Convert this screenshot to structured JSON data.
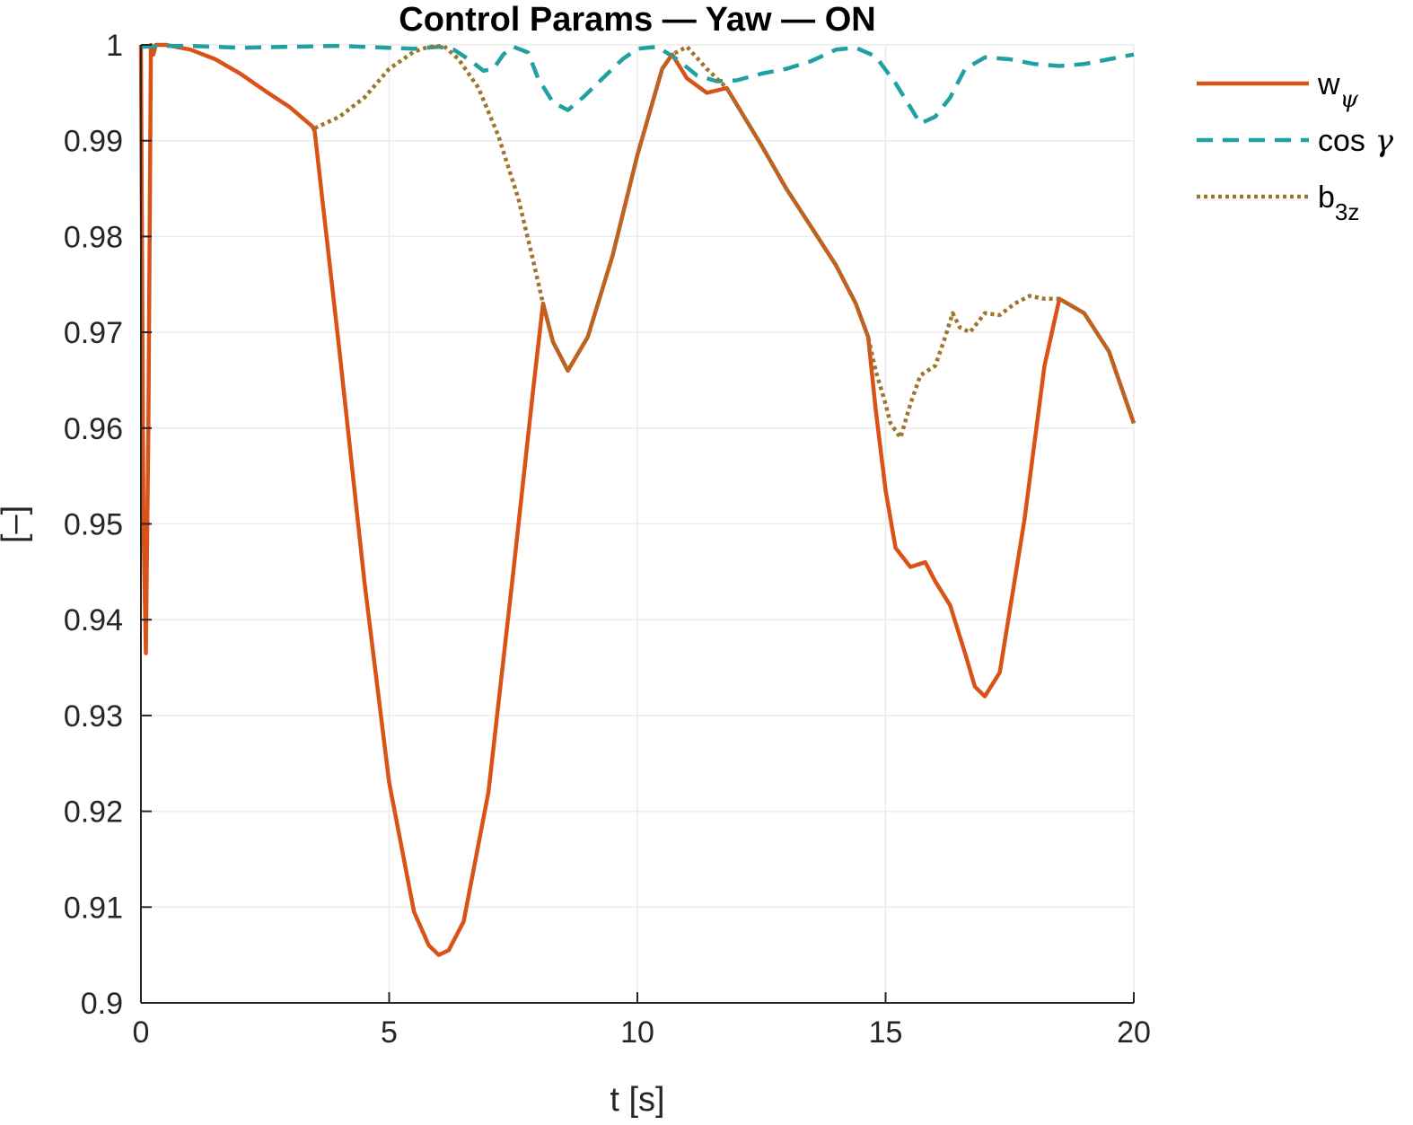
{
  "chart_data": {
    "type": "line",
    "title": "Control Params — Yaw — ON",
    "xlabel": "t [s]",
    "ylabel": "[–]",
    "xlim": [
      0,
      20
    ],
    "ylim": [
      0.9,
      1.0
    ],
    "xticks": [
      0,
      5,
      10,
      15,
      20
    ],
    "xtick_labels": [
      "0",
      "5",
      "10",
      "15",
      "20"
    ],
    "yticks": [
      0.9,
      0.91,
      0.92,
      0.93,
      0.94,
      0.95,
      0.96,
      0.97,
      0.98,
      0.99,
      1.0
    ],
    "ytick_labels": [
      "0.9",
      "0.91",
      "0.92",
      "0.93",
      "0.94",
      "0.95",
      "0.96",
      "0.97",
      "0.98",
      "0.99",
      "1"
    ],
    "grid": true,
    "legend_position": "outside-top-right",
    "series": [
      {
        "name": "w",
        "name_sub": "ψ",
        "color": "#d95319",
        "style": "solid",
        "x": [
          0.0,
          0.05,
          0.1,
          0.15,
          0.2,
          0.25,
          0.3,
          0.5,
          1.0,
          1.5,
          2.0,
          2.5,
          3.0,
          3.45,
          3.5,
          4.0,
          4.5,
          5.0,
          5.5,
          5.8,
          6.0,
          6.2,
          6.5,
          7.0,
          7.5,
          7.9,
          8.1,
          8.3,
          8.6,
          9.0,
          9.5,
          10.0,
          10.5,
          10.7,
          11.0,
          11.4,
          11.8,
          12.5,
          13.0,
          13.5,
          14.0,
          14.4,
          14.65,
          14.8,
          15.0,
          15.2,
          15.5,
          15.8,
          16.0,
          16.3,
          16.6,
          16.8,
          17.0,
          17.3,
          17.8,
          18.2,
          18.5,
          19.0,
          19.5,
          20.0
        ],
        "y": [
          1.0,
          0.95,
          0.9365,
          0.96,
          1.0,
          0.999,
          1.0,
          1.0,
          0.9995,
          0.9985,
          0.997,
          0.9952,
          0.9935,
          0.9915,
          0.991,
          0.968,
          0.944,
          0.923,
          0.9095,
          0.906,
          0.905,
          0.9055,
          0.9085,
          0.922,
          0.945,
          0.964,
          0.973,
          0.969,
          0.966,
          0.9695,
          0.978,
          0.9885,
          0.9975,
          0.999,
          0.9965,
          0.995,
          0.9955,
          0.9895,
          0.985,
          0.981,
          0.977,
          0.973,
          0.9695,
          0.962,
          0.9535,
          0.9475,
          0.9455,
          0.946,
          0.944,
          0.9415,
          0.9365,
          0.933,
          0.932,
          0.9345,
          0.9505,
          0.9665,
          0.9735,
          0.972,
          0.968,
          0.9605
        ]
      },
      {
        "name": "cos",
        "name_sym": "γ",
        "color": "#20a0a0",
        "style": "dashed",
        "x": [
          0.0,
          0.5,
          1.0,
          1.5,
          2.0,
          3.0,
          4.0,
          5.0,
          5.5,
          6.0,
          6.3,
          6.6,
          6.9,
          7.1,
          7.3,
          7.5,
          7.8,
          8.0,
          8.3,
          8.6,
          8.9,
          9.3,
          9.7,
          10.0,
          10.4,
          10.8,
          11.2,
          11.6,
          12.0,
          12.5,
          13.0,
          13.5,
          14.0,
          14.4,
          14.8,
          15.2,
          15.5,
          15.7,
          16.0,
          16.3,
          16.6,
          17.0,
          17.5,
          18.0,
          18.5,
          19.0,
          19.5,
          20.0
        ],
        "y": [
          0.9998,
          0.9999,
          0.9999,
          0.9998,
          0.9997,
          0.9998,
          0.9999,
          0.9997,
          0.9996,
          0.9998,
          0.9995,
          0.9985,
          0.9973,
          0.9975,
          0.999,
          0.9998,
          0.9992,
          0.9965,
          0.994,
          0.9932,
          0.9945,
          0.9965,
          0.9985,
          0.9996,
          0.9998,
          0.9985,
          0.9968,
          0.9962,
          0.9963,
          0.997,
          0.9975,
          0.9983,
          0.9995,
          0.9997,
          0.9988,
          0.996,
          0.9935,
          0.9918,
          0.9925,
          0.9945,
          0.9975,
          0.9987,
          0.9985,
          0.998,
          0.9978,
          0.998,
          0.9985,
          0.999
        ]
      },
      {
        "name": "b",
        "name_sub": "3z",
        "color": "#a0742a",
        "style": "dotted",
        "x": [
          3.5,
          4.0,
          4.5,
          5.0,
          5.5,
          5.8,
          6.1,
          6.4,
          6.8,
          7.2,
          7.6,
          7.9,
          8.1,
          8.3,
          8.6,
          9.0,
          9.5,
          10.0,
          10.5,
          10.7,
          11.0,
          11.4,
          11.8,
          12.5,
          13.0,
          13.5,
          14.0,
          14.4,
          14.65,
          14.8,
          15.0,
          15.1,
          15.3,
          15.5,
          15.7,
          16.0,
          16.2,
          16.35,
          16.5,
          16.7,
          17.0,
          17.3,
          17.6,
          17.9,
          18.2,
          18.5,
          19.0,
          19.5,
          20.0
        ],
        "y": [
          0.9913,
          0.9925,
          0.9945,
          0.9975,
          0.9993,
          0.9998,
          0.9999,
          0.9985,
          0.9955,
          0.9905,
          0.984,
          0.9775,
          0.973,
          0.969,
          0.966,
          0.9695,
          0.978,
          0.9885,
          0.9975,
          0.999,
          0.9998,
          0.9975,
          0.9955,
          0.9895,
          0.985,
          0.981,
          0.977,
          0.973,
          0.9695,
          0.966,
          0.9625,
          0.9605,
          0.959,
          0.9625,
          0.9655,
          0.9665,
          0.9695,
          0.972,
          0.9705,
          0.97,
          0.972,
          0.9718,
          0.973,
          0.9738,
          0.9735,
          0.9735,
          0.972,
          0.968,
          0.9605
        ]
      }
    ]
  }
}
